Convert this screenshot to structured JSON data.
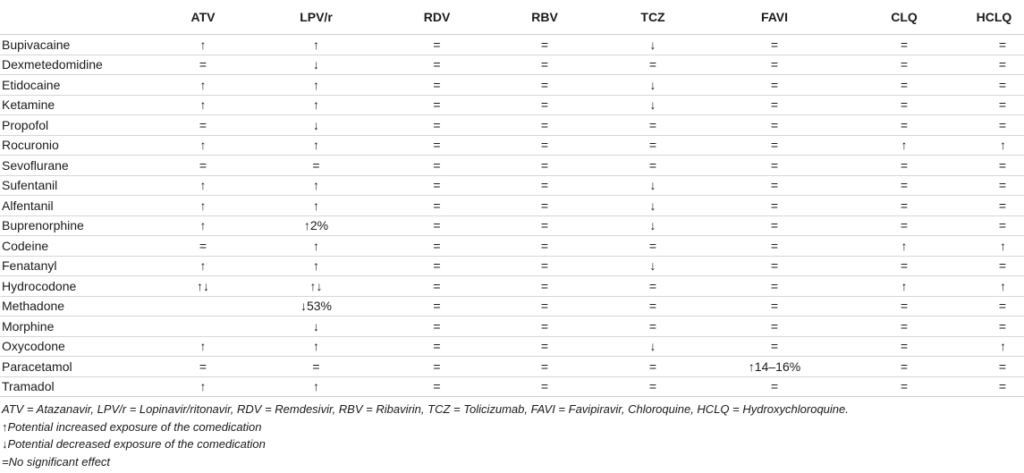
{
  "table": {
    "headers": [
      "",
      "ATV",
      "LPV/r",
      "RDV",
      "RBV",
      "TCZ",
      "FAVI",
      "CLQ",
      "HCLQ"
    ],
    "rows": [
      [
        "Bupivacaine",
        "↑",
        "↑",
        "=",
        "=",
        "↓",
        "=",
        "=",
        "="
      ],
      [
        "Dexmetedomidine",
        "=",
        "↓",
        "=",
        "=",
        "=",
        "=",
        "=",
        "="
      ],
      [
        "Etidocaine",
        "↑",
        "↑",
        "=",
        "=",
        "↓",
        "=",
        "=",
        "="
      ],
      [
        "Ketamine",
        "↑",
        "↑",
        "=",
        "=",
        "↓",
        "=",
        "=",
        "="
      ],
      [
        "Propofol",
        "=",
        "↓",
        "=",
        "=",
        "=",
        "=",
        "=",
        "="
      ],
      [
        "Rocuronio",
        "↑",
        "↑",
        "=",
        "=",
        "=",
        "=",
        "↑",
        "↑"
      ],
      [
        "Sevoflurane",
        "=",
        "=",
        "=",
        "=",
        "=",
        "=",
        "=",
        "="
      ],
      [
        "Sufentanil",
        "↑",
        "↑",
        "=",
        "=",
        "↓",
        "=",
        "=",
        "="
      ],
      [
        "Alfentanil",
        "↑",
        "↑",
        "=",
        "=",
        "↓",
        "=",
        "=",
        "="
      ],
      [
        "Buprenorphine",
        "↑",
        "↑2%",
        "=",
        "=",
        "↓",
        "=",
        "=",
        "="
      ],
      [
        "Codeine",
        "=",
        "↑",
        "=",
        "=",
        "=",
        "=",
        "↑",
        "↑"
      ],
      [
        "Fenatanyl",
        "↑",
        "↑",
        "=",
        "=",
        "↓",
        "=",
        "=",
        "="
      ],
      [
        "Hydrocodone",
        "↑↓",
        "↑↓",
        "=",
        "=",
        "=",
        "=",
        "↑",
        "↑"
      ],
      [
        "Methadone",
        "",
        "↓53%",
        "=",
        "=",
        "=",
        "=",
        "=",
        "="
      ],
      [
        "Morphine",
        "",
        "↓",
        "=",
        "=",
        "=",
        "=",
        "=",
        "="
      ],
      [
        "Oxycodone",
        "↑",
        "↑",
        "=",
        "=",
        "↓",
        "=",
        "=",
        "↑"
      ],
      [
        "Paracetamol",
        "=",
        "=",
        "=",
        "=",
        "=",
        "↑14–16%",
        "=",
        "="
      ],
      [
        "Tramadol",
        "↑",
        "↑",
        "=",
        "=",
        "=",
        "=",
        "=",
        "="
      ]
    ]
  },
  "notes": [
    "ATV = Atazanavir, LPV/r = Lopinavir/ritonavir, RDV = Remdesivir, RBV = Ribavirin, TCZ = Tolicizumab, FAVI = Favipiravir, Chloroquine, HCLQ = Hydroxychloroquine.",
    "↑Potential increased exposure of the comedication",
    "↓Potential decreased exposure of the comedication",
    "=No significant effect"
  ]
}
